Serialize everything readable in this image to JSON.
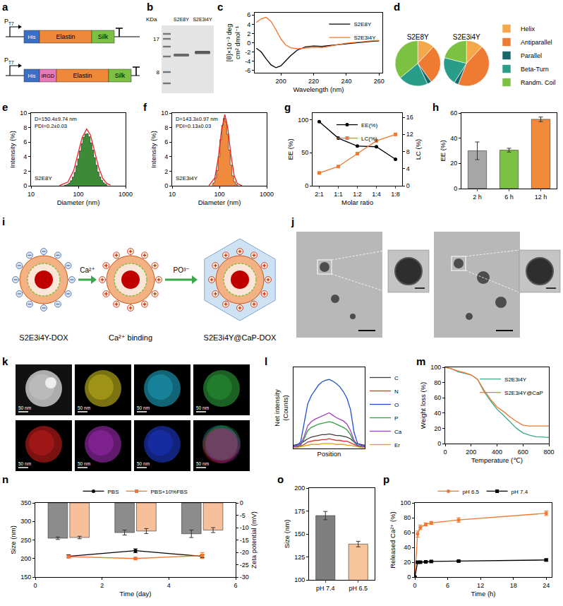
{
  "chart_data": [
    {
      "panel": "c",
      "type": "line",
      "x": [
        185,
        188,
        191,
        194,
        197,
        200,
        203,
        206,
        210,
        215,
        220,
        225,
        230,
        235,
        240,
        245,
        250,
        255,
        260
      ],
      "series": [
        {
          "name": "S2E8Y",
          "color": "#000000",
          "values": [
            -1.2,
            -2.0,
            -3.5,
            -4.8,
            -5.4,
            -5.0,
            -3.9,
            -2.8,
            -1.6,
            -0.9,
            -0.7,
            -0.8,
            -0.6,
            -0.4,
            -0.2,
            0,
            0.1,
            0.3,
            0.4
          ]
        },
        {
          "name": "S2E3i4Y",
          "color": "#f07830",
          "values": [
            4.4,
            5.2,
            5.5,
            4.6,
            2.8,
            0.8,
            -0.5,
            -1.1,
            -1.3,
            -1.1,
            -1.0,
            -1.1,
            -0.7,
            -0.4,
            -0.1,
            0.1,
            0.3,
            0.4,
            0.5
          ]
        }
      ],
      "xlabel": "Wavelength (nm)",
      "ylabel": "[θ]×10⁻³ deg cm² dmol⁻¹",
      "xlim": [
        184,
        262
      ],
      "xticks": [
        200,
        220,
        240,
        260
      ],
      "ylim": [
        -6.5,
        6.5
      ],
      "yticks": [
        -6,
        -4,
        -2,
        0,
        2,
        4,
        6
      ],
      "legend": "upper right"
    },
    {
      "panel": "d",
      "type": "pie",
      "categories": [
        "Helix",
        "Antiparallel",
        "Parallel",
        "Beta-Turn",
        "Randm. Coil"
      ],
      "colors": [
        "#f5a84a",
        "#ef7a32",
        "#16686a",
        "#2a9d8a",
        "#7cc142"
      ],
      "series": [
        {
          "name": "S2E8Y",
          "values": [
            12,
            28,
            3,
            21,
            36
          ]
        },
        {
          "name": "S2E3i4Y",
          "values": [
            12,
            44,
            3,
            20,
            21
          ]
        }
      ],
      "legend": "right"
    },
    {
      "panel": "e",
      "type": "bar",
      "log": "x",
      "series": [
        {
          "type": "bar",
          "color": "#3d8b37",
          "x": [
            50,
            55,
            60,
            65,
            71,
            78,
            85,
            93,
            101,
            110,
            120,
            131,
            143,
            156,
            170,
            186,
            203,
            221,
            241,
            263,
            287,
            313,
            342,
            373,
            407
          ],
          "values": [
            0.05,
            0.1,
            0.2,
            0.39,
            0.7,
            1.2,
            1.85,
            2.75,
            3.7,
            4.8,
            5.8,
            6.65,
            7.1,
            7.15,
            6.75,
            5.9,
            4.9,
            3.85,
            2.83,
            1.9,
            1.22,
            0.75,
            0.41,
            0.22,
            0.11
          ]
        },
        {
          "type": "line",
          "color": "#e8231f",
          "x": [
            40,
            60,
            80,
            100,
            120,
            150,
            180,
            220,
            270,
            330,
            400,
            480
          ],
          "values": [
            0.03,
            0.5,
            2.1,
            4.55,
            6.6,
            7.8,
            7.0,
            4.8,
            2.5,
            1.0,
            0.33,
            0.09
          ]
        }
      ],
      "annotations": [
        "D=150.4±9.74 nm",
        "PDI=0.2±0.03",
        "S2E8Y"
      ],
      "xlabel": "Diameter (nm)",
      "ylabel": "Intensity (%)",
      "xlim": [
        10,
        1000
      ],
      "xticks": [
        10,
        100,
        1000
      ],
      "ylim": [
        0,
        10
      ],
      "yticks": [
        0,
        2,
        4,
        6,
        8,
        10
      ]
    },
    {
      "panel": "f",
      "type": "bar",
      "log": "x",
      "series": [
        {
          "type": "bar",
          "color": "#f08a3c",
          "x": [
            70,
            76,
            83,
            90,
            98,
            107,
            116,
            126,
            137,
            149,
            162,
            176,
            192,
            209,
            227,
            247
          ],
          "values": [
            0.19,
            0.4,
            1.05,
            2.1,
            4.0,
            6.35,
            8.3,
            9.27,
            8.8,
            7.1,
            4.9,
            2.85,
            1.36,
            0.56,
            0.2,
            0.06
          ]
        },
        {
          "type": "line",
          "color": "#e8231f",
          "x": [
            60,
            80,
            95,
            110,
            130,
            150,
            175,
            205,
            240,
            300
          ],
          "values": [
            0.04,
            1.08,
            3.9,
            7.5,
            9.8,
            8.0,
            4.25,
            1.38,
            0.29,
            0.01
          ]
        }
      ],
      "annotations": [
        "D=143.3±0.97 nm",
        "PDI=0.13±0.03",
        "S2E3i4Y"
      ],
      "xlabel": "Diameter (nm)",
      "ylabel": "Intensity (%)",
      "xlim": [
        10,
        1000
      ],
      "xticks": [
        10,
        100,
        1000
      ],
      "ylim": [
        0,
        10
      ],
      "yticks": [
        0,
        2,
        4,
        6,
        8,
        10
      ]
    },
    {
      "panel": "g",
      "type": "line",
      "categories": [
        "2:1",
        "1:1",
        "1:2",
        "1:4",
        "1:8"
      ],
      "series": [
        {
          "name": "EE(%)",
          "color": "#000000",
          "marker": "circle",
          "values": [
            97,
            72,
            60,
            59,
            40
          ]
        },
        {
          "name": "LC(%)",
          "color": "#f07830",
          "marker": "square",
          "axis": "y2",
          "values": [
            3,
            4.5,
            7.5,
            10.5,
            12
          ]
        }
      ],
      "xlabel": "Molar ratio",
      "ylabel": "EE (%)",
      "y2label": "LC (%)",
      "ylim": [
        0,
        110
      ],
      "yticks": [
        0,
        50,
        100
      ],
      "y2lim": [
        0,
        17
      ],
      "y2ticks": [
        0,
        4,
        8,
        12,
        16
      ],
      "legend": "upper center"
    },
    {
      "panel": "h",
      "type": "bar",
      "categories": [
        "2 h",
        "6 h",
        "12 h"
      ],
      "values": [
        30,
        30.5,
        55
      ],
      "errors": [
        7,
        1.5,
        1.8
      ],
      "colors": [
        "#a6a6a6",
        "#7cc142",
        "#f28a3c"
      ],
      "ylabel": "EE (%)",
      "ylim": [
        0,
        60
      ],
      "yticks": [
        0,
        20,
        40,
        60
      ]
    },
    {
      "panel": "l",
      "type": "line",
      "x": [
        0,
        1,
        2,
        3,
        4,
        5,
        6,
        7,
        8,
        9,
        10,
        11,
        12,
        13,
        14,
        15,
        16,
        17,
        18,
        19,
        20
      ],
      "series": [
        {
          "name": "C",
          "color": "#404040",
          "values": [
            4,
            5,
            6,
            9,
            12,
            14,
            15,
            16,
            17,
            17,
            18,
            17,
            16,
            16,
            15,
            14,
            12,
            8,
            6,
            5,
            4
          ]
        },
        {
          "name": "N",
          "color": "#e03030",
          "values": [
            2,
            2,
            3,
            5,
            8,
            9,
            10,
            10,
            11,
            11,
            12,
            11,
            10,
            10,
            9,
            9,
            7,
            5,
            3,
            2,
            2
          ]
        },
        {
          "name": "O",
          "color": "#2050d0",
          "values": [
            3,
            4,
            8,
            30,
            55,
            65,
            72,
            78,
            82,
            84,
            85,
            83,
            80,
            76,
            70,
            62,
            48,
            20,
            6,
            4,
            3
          ]
        },
        {
          "name": "P",
          "color": "#30a040",
          "values": [
            2,
            2,
            4,
            12,
            22,
            26,
            28,
            30,
            31,
            32,
            33,
            32,
            30,
            28,
            26,
            23,
            17,
            8,
            3,
            2,
            2
          ]
        },
        {
          "name": "Ca",
          "color": "#a040c0",
          "values": [
            2,
            3,
            5,
            15,
            28,
            33,
            36,
            38,
            40,
            42,
            44,
            41,
            38,
            36,
            34,
            30,
            22,
            10,
            4,
            3,
            2
          ]
        },
        {
          "name": "Er",
          "color": "#e0a020",
          "values": [
            1,
            1,
            2,
            3,
            4,
            5,
            5,
            5,
            6,
            6,
            6,
            6,
            5,
            5,
            5,
            4,
            4,
            3,
            2,
            1,
            1
          ]
        }
      ],
      "xlabel": "Position",
      "ylabel": "Net intensity (Counts)",
      "xlim": [
        0,
        20
      ],
      "ylim": [
        0,
        100
      ],
      "tick_labels": false,
      "legend": "right"
    },
    {
      "panel": "m",
      "type": "line",
      "x": [
        0,
        50,
        100,
        150,
        200,
        250,
        300,
        350,
        400,
        450,
        500,
        550,
        600,
        650,
        700,
        750,
        800
      ],
      "series": [
        {
          "name": "S2E3i4Y",
          "color": "#3aa88a",
          "values": [
            100,
            98,
            94,
            92,
            90,
            84,
            68,
            56,
            45,
            37,
            28,
            20,
            14,
            11,
            9,
            8.5,
            8
          ]
        },
        {
          "name": "S2E3i4Y@CaP",
          "color": "#f07830",
          "values": [
            100,
            98,
            95,
            93,
            90,
            84,
            70,
            58,
            48,
            42,
            35,
            29,
            24,
            23,
            23,
            23,
            23
          ]
        }
      ],
      "xlabel": "Temperature (℃)",
      "ylabel": "Weight loss (%)",
      "xlim": [
        0,
        800
      ],
      "xticks": [
        0,
        200,
        400,
        600,
        800
      ],
      "ylim": [
        0,
        100
      ],
      "yticks": [
        0,
        20,
        40,
        60,
        80,
        100
      ],
      "legend": "upper right"
    },
    {
      "panel": "n",
      "type": "bar",
      "x": [
        1,
        3,
        5
      ],
      "series": [
        {
          "type": "bar",
          "axis": "y2",
          "color": "#8c8c8c",
          "values": [
            -14.3,
            -12,
            -12.5
          ],
          "errors": [
            0.5,
            1,
            1.5
          ]
        },
        {
          "type": "bar",
          "axis": "y2",
          "color": "#f8c09a",
          "values": [
            -14,
            -11.4,
            -11
          ],
          "errors": [
            0.5,
            1,
            1
          ]
        },
        {
          "type": "line",
          "name": "PBS",
          "color": "#000000",
          "marker": "circle",
          "values": [
            206,
            221,
            206
          ],
          "errors": [
            4,
            5,
            4
          ]
        },
        {
          "type": "line",
          "name": "PBS+10%FBS",
          "color": "#f07830",
          "marker": "square",
          "values": [
            205,
            200,
            208
          ],
          "errors": [
            3,
            3,
            8
          ]
        }
      ],
      "xlabel": "Time (day)",
      "ylabel": "Size (nm)",
      "y2label": "Zeta potential (mV)",
      "xlim": [
        0,
        6
      ],
      "xticks": [
        0,
        2,
        4,
        6
      ],
      "ylim": [
        150,
        350
      ],
      "yticks": [
        150,
        200,
        250,
        300,
        350
      ],
      "y2lim": [
        -30,
        0
      ],
      "y2ticks": [
        -30,
        -25,
        -20,
        -15,
        -10,
        -5,
        0
      ],
      "legend": "top"
    },
    {
      "panel": "o",
      "type": "bar",
      "categories": [
        "pH 7.4",
        "pH 6.5"
      ],
      "values": [
        170,
        139
      ],
      "errors": [
        4.5,
        3
      ],
      "colors": [
        "#7f7f7f",
        "#f8c49a"
      ],
      "ylabel": "Size (nm)",
      "ylim": [
        100,
        200
      ],
      "yticks": [
        100,
        125,
        150,
        175,
        200
      ]
    },
    {
      "panel": "p",
      "type": "line",
      "x": [
        0,
        0.5,
        1,
        2,
        3,
        8,
        24
      ],
      "series": [
        {
          "name": "pH 6.5",
          "color": "#f07830",
          "marker": "circle",
          "values": [
            0,
            58,
            67,
            71,
            73,
            77,
            86
          ],
          "errors": [
            0,
            4,
            3,
            2,
            2,
            3,
            3
          ]
        },
        {
          "name": "pH 7.4",
          "color": "#000000",
          "marker": "square",
          "values": [
            0,
            20,
            20,
            20.5,
            21,
            21.5,
            23
          ],
          "errors": [
            0,
            1,
            1,
            1,
            1,
            1,
            1.5
          ]
        }
      ],
      "xlabel": "Time (h)",
      "ylabel": "Released Ca²⁺ (%)",
      "xlim": [
        0,
        25
      ],
      "xticks": [
        0,
        6,
        12,
        18,
        24
      ],
      "ylim": [
        0,
        100
      ],
      "yticks": [
        0,
        20,
        40,
        60,
        80,
        100
      ],
      "legend": "top"
    }
  ],
  "diagrams": {
    "a": {
      "panel": "a",
      "promoter": "P",
      "promoter_sub": "T7",
      "constructs": [
        [
          "His",
          "Elastin",
          "Silk"
        ],
        [
          "His",
          "iRGD",
          "Elastin",
          "Silk"
        ]
      ]
    },
    "b": {
      "panel": "b",
      "unit": "KDa",
      "markers": [
        "17",
        "8"
      ],
      "lanes": [
        "S2E8Y",
        "S2E3i4Y"
      ]
    },
    "i": {
      "panel": "i",
      "stages": [
        "S2E3i4Y-DOX",
        "Ca²⁺ binding",
        "S2E3i4Y@CaP-DOX"
      ],
      "steps": [
        "Ca²⁺",
        "PO³⁻"
      ]
    },
    "j": {
      "panel": "j"
    },
    "k": {
      "panel": "k",
      "scale_bar": "50 nm"
    }
  }
}
